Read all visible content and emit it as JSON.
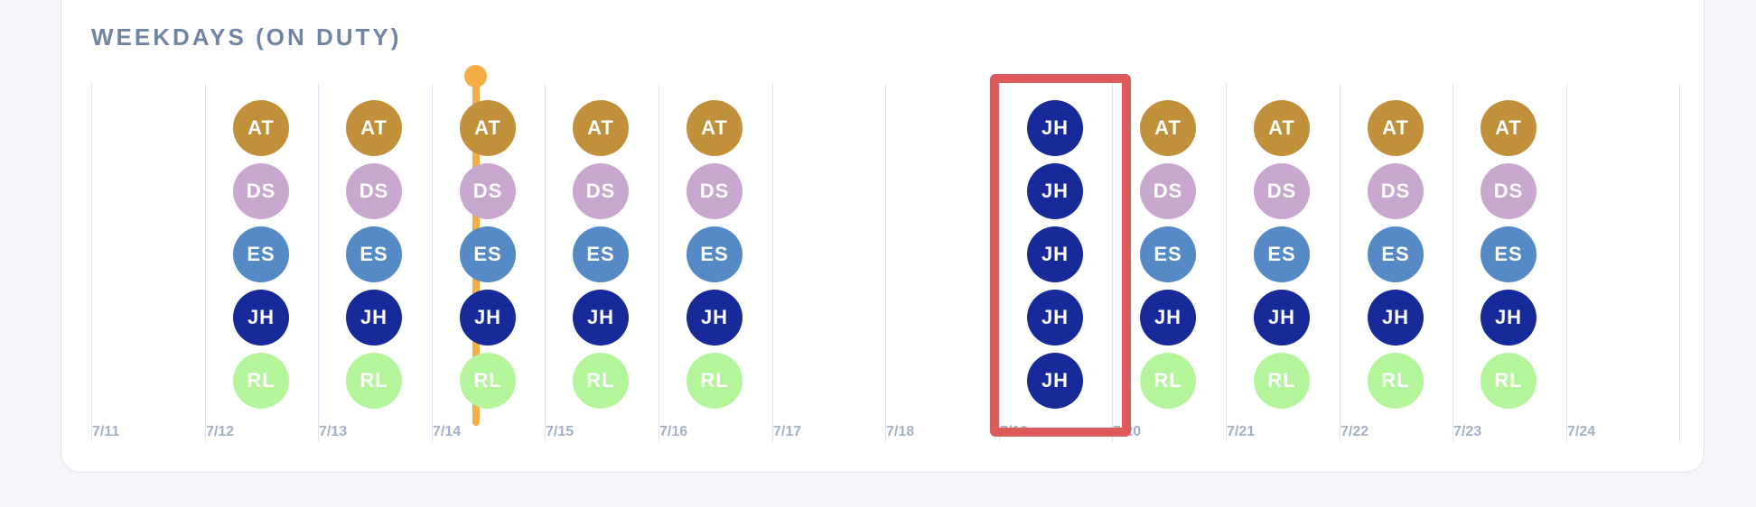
{
  "section": {
    "title": "WEEKDAYS (ON DUTY)"
  },
  "people": {
    "AT": {
      "initials": "AT",
      "color": "#c0903a"
    },
    "DS": {
      "initials": "DS",
      "color": "#c9a8cf"
    },
    "ES": {
      "initials": "ES",
      "color": "#558ac7"
    },
    "JH": {
      "initials": "JH",
      "color": "#18299a"
    },
    "RL": {
      "initials": "RL",
      "color": "#b4f59c"
    }
  },
  "days": [
    {
      "date": "7/11",
      "on_duty": []
    },
    {
      "date": "7/12",
      "on_duty": [
        "AT",
        "DS",
        "ES",
        "JH",
        "RL"
      ]
    },
    {
      "date": "7/13",
      "on_duty": [
        "AT",
        "DS",
        "ES",
        "JH",
        "RL"
      ]
    },
    {
      "date": "7/14",
      "on_duty": [
        "AT",
        "DS",
        "ES",
        "JH",
        "RL"
      ],
      "today": true
    },
    {
      "date": "7/15",
      "on_duty": [
        "AT",
        "DS",
        "ES",
        "JH",
        "RL"
      ]
    },
    {
      "date": "7/16",
      "on_duty": [
        "AT",
        "DS",
        "ES",
        "JH",
        "RL"
      ]
    },
    {
      "date": "7/17",
      "on_duty": []
    },
    {
      "date": "7/18",
      "on_duty": []
    },
    {
      "date": "7/19",
      "on_duty": [
        "JH",
        "JH",
        "JH",
        "JH",
        "JH"
      ],
      "highlighted": true
    },
    {
      "date": "7/20",
      "on_duty": [
        "AT",
        "DS",
        "ES",
        "JH",
        "RL"
      ]
    },
    {
      "date": "7/21",
      "on_duty": [
        "AT",
        "DS",
        "ES",
        "JH",
        "RL"
      ]
    },
    {
      "date": "7/22",
      "on_duty": [
        "AT",
        "DS",
        "ES",
        "JH",
        "RL"
      ]
    },
    {
      "date": "7/23",
      "on_duty": [
        "AT",
        "DS",
        "ES",
        "JH",
        "RL"
      ]
    },
    {
      "date": "7/24",
      "on_duty": []
    }
  ]
}
